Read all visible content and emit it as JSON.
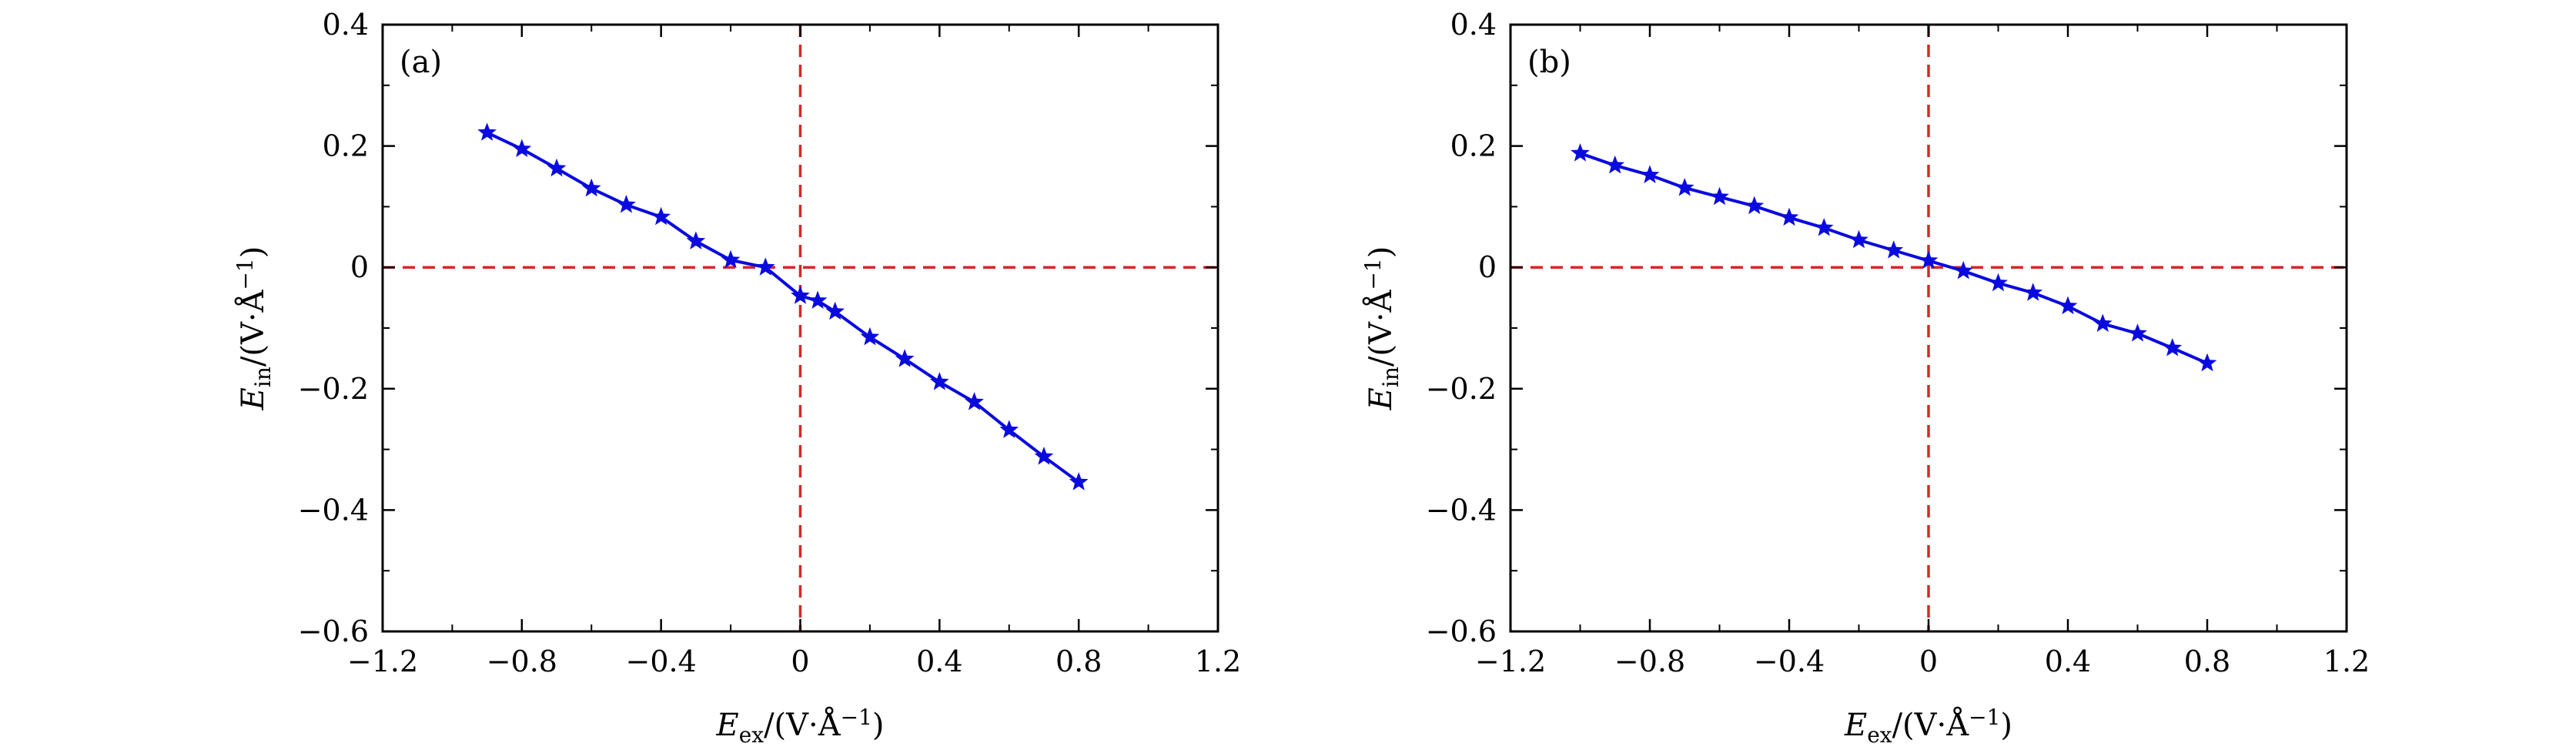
{
  "chart_data": [
    {
      "type": "line",
      "panel_label": "(a)",
      "xlabel": {
        "main": "E",
        "sub": "ex",
        "unit": "/(V·Å",
        "exp": "−1",
        "close": ")"
      },
      "ylabel": {
        "main": "E",
        "sub": "in",
        "unit": "/(V·Å",
        "exp": "−1",
        "close": ")"
      },
      "xlim": [
        -1.2,
        1.2
      ],
      "ylim": [
        -0.6,
        0.4
      ],
      "xticks": [
        -1.2,
        -0.8,
        -0.4,
        0,
        0.4,
        0.8,
        1.2
      ],
      "xtick_labels": [
        "−1.2",
        "−0.8",
        "−0.4",
        "0",
        "0.4",
        "0.8",
        "1.2"
      ],
      "yticks": [
        -0.6,
        -0.4,
        -0.2,
        0,
        0.2,
        0.4
      ],
      "ytick_labels": [
        "−0.6",
        "−0.4",
        "−0.2",
        "0",
        "0.2",
        "0.4"
      ],
      "grid": false,
      "reference_lines": {
        "x": 0,
        "y": 0,
        "color": "#d62728",
        "style": "dashed"
      },
      "series": [
        {
          "color": "#0a0adf",
          "marker": "star",
          "x": [
            -0.9,
            -0.8,
            -0.7,
            -0.6,
            -0.5,
            -0.4,
            -0.3,
            -0.2,
            -0.1,
            0.0,
            0.05,
            0.1,
            0.2,
            0.3,
            0.4,
            0.5,
            0.6,
            0.7,
            0.8
          ],
          "y": [
            0.222,
            0.195,
            0.163,
            0.13,
            0.103,
            0.083,
            0.043,
            0.012,
            0.0,
            -0.047,
            -0.055,
            -0.073,
            -0.115,
            -0.151,
            -0.189,
            -0.222,
            -0.268,
            -0.312,
            -0.354
          ]
        }
      ]
    },
    {
      "type": "line",
      "panel_label": "(b)",
      "xlabel": {
        "main": "E",
        "sub": "ex",
        "unit": "/(V·Å",
        "exp": "−1",
        "close": ")"
      },
      "ylabel": {
        "main": "E",
        "sub": "in",
        "unit": "/(V·Å",
        "exp": "−1",
        "close": ")"
      },
      "xlim": [
        -1.2,
        1.2
      ],
      "ylim": [
        -0.6,
        0.4
      ],
      "xticks": [
        -1.2,
        -0.8,
        -0.4,
        0,
        0.4,
        0.8,
        1.2
      ],
      "xtick_labels": [
        "−1.2",
        "−0.8",
        "−0.4",
        "0",
        "0.4",
        "0.8",
        "1.2"
      ],
      "yticks": [
        -0.6,
        -0.4,
        -0.2,
        0,
        0.2,
        0.4
      ],
      "ytick_labels": [
        "−0.6",
        "−0.4",
        "−0.2",
        "0",
        "0.2",
        "0.4"
      ],
      "grid": false,
      "reference_lines": {
        "x": 0,
        "y": 0,
        "color": "#d62728",
        "style": "dashed"
      },
      "series": [
        {
          "color": "#0a0adf",
          "marker": "star",
          "x": [
            -1.0,
            -0.9,
            -0.8,
            -0.7,
            -0.6,
            -0.5,
            -0.4,
            -0.3,
            -0.2,
            -0.1,
            0.0,
            0.1,
            0.2,
            0.3,
            0.4,
            0.5,
            0.6,
            0.7,
            0.8
          ],
          "y": [
            0.188,
            0.168,
            0.152,
            0.131,
            0.116,
            0.101,
            0.082,
            0.065,
            0.045,
            0.028,
            0.011,
            -0.006,
            -0.026,
            -0.042,
            -0.064,
            -0.093,
            -0.109,
            -0.133,
            -0.158
          ]
        }
      ]
    }
  ]
}
